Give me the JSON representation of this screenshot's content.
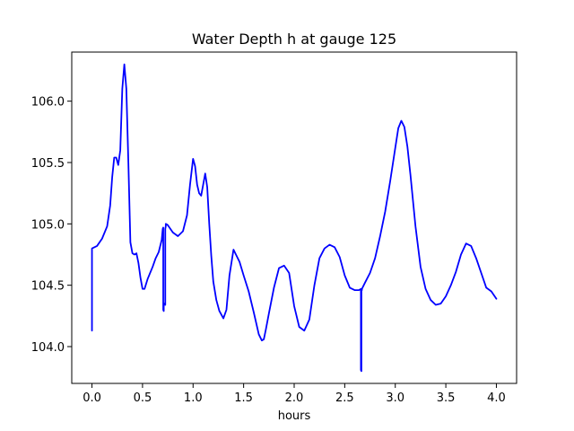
{
  "chart_data": {
    "type": "line",
    "title": "Water Depth h at gauge 125",
    "xlabel": "hours",
    "ylabel": "",
    "xlim": [
      -0.2,
      4.2
    ],
    "ylim": [
      103.7,
      106.4
    ],
    "xticks": [
      0.0,
      0.5,
      1.0,
      1.5,
      2.0,
      2.5,
      3.0,
      3.5,
      4.0
    ],
    "xtick_labels": [
      "0.0",
      "0.5",
      "1.0",
      "1.5",
      "2.0",
      "2.5",
      "3.0",
      "3.5",
      "4.0"
    ],
    "yticks": [
      104.0,
      104.5,
      105.0,
      105.5,
      106.0
    ],
    "ytick_labels": [
      "104.0",
      "104.5",
      "105.0",
      "105.5",
      "106.0"
    ],
    "grid": false,
    "series": [
      {
        "color": "#0000ff",
        "x": [
          0.0,
          0.0,
          0.0,
          0.05,
          0.1,
          0.15,
          0.18,
          0.2,
          0.22,
          0.24,
          0.26,
          0.28,
          0.3,
          0.32,
          0.34,
          0.36,
          0.38,
          0.4,
          0.42,
          0.44,
          0.46,
          0.48,
          0.5,
          0.52,
          0.55,
          0.6,
          0.63,
          0.66,
          0.69,
          0.7,
          0.705,
          0.705,
          0.71,
          0.71,
          0.72,
          0.725,
          0.725,
          0.73,
          0.73,
          0.75,
          0.8,
          0.85,
          0.9,
          0.94,
          0.97,
          1.0,
          1.02,
          1.04,
          1.06,
          1.08,
          1.1,
          1.12,
          1.14,
          1.16,
          1.18,
          1.2,
          1.23,
          1.26,
          1.3,
          1.33,
          1.36,
          1.4,
          1.43,
          1.46,
          1.5,
          1.55,
          1.6,
          1.65,
          1.68,
          1.7,
          1.72,
          1.75,
          1.8,
          1.85,
          1.9,
          1.95,
          2.0,
          2.05,
          2.1,
          2.15,
          2.2,
          2.25,
          2.3,
          2.35,
          2.4,
          2.45,
          2.5,
          2.55,
          2.6,
          2.62,
          2.64,
          2.66,
          2.66,
          2.665,
          2.665,
          2.67,
          2.67,
          2.7,
          2.75,
          2.8,
          2.85,
          2.9,
          2.95,
          3.0,
          3.03,
          3.06,
          3.09,
          3.12,
          3.15,
          3.2,
          3.25,
          3.3,
          3.35,
          3.4,
          3.45,
          3.5,
          3.55,
          3.6,
          3.65,
          3.7,
          3.75,
          3.8,
          3.85,
          3.9,
          3.95,
          4.0
        ],
        "y": [
          104.13,
          104.14,
          104.8,
          104.82,
          104.88,
          104.98,
          105.15,
          105.38,
          105.54,
          105.54,
          105.48,
          105.6,
          106.1,
          106.3,
          106.1,
          105.5,
          104.85,
          104.76,
          104.75,
          104.76,
          104.68,
          104.56,
          104.47,
          104.47,
          104.55,
          104.65,
          104.72,
          104.77,
          104.87,
          104.96,
          104.97,
          104.3,
          104.29,
          104.35,
          104.35,
          104.34,
          104.96,
          104.98,
          105.0,
          104.99,
          104.93,
          104.9,
          104.94,
          105.07,
          105.32,
          105.53,
          105.47,
          105.32,
          105.25,
          105.23,
          105.32,
          105.41,
          105.3,
          105.0,
          104.74,
          104.53,
          104.38,
          104.29,
          104.23,
          104.3,
          104.58,
          104.79,
          104.74,
          104.69,
          104.58,
          104.45,
          104.28,
          104.1,
          104.05,
          104.06,
          104.14,
          104.27,
          104.48,
          104.64,
          104.66,
          104.6,
          104.33,
          104.16,
          104.13,
          104.22,
          104.5,
          104.72,
          104.8,
          104.83,
          104.81,
          104.73,
          104.58,
          104.48,
          104.46,
          104.46,
          104.46,
          104.47,
          103.81,
          103.8,
          104.46,
          104.46,
          104.47,
          104.52,
          104.6,
          104.72,
          104.9,
          105.1,
          105.35,
          105.62,
          105.78,
          105.84,
          105.79,
          105.63,
          105.4,
          104.98,
          104.65,
          104.47,
          104.38,
          104.34,
          104.35,
          104.41,
          104.5,
          104.61,
          104.75,
          104.84,
          104.82,
          104.72,
          104.6,
          104.48,
          104.45,
          104.39
        ]
      }
    ]
  }
}
